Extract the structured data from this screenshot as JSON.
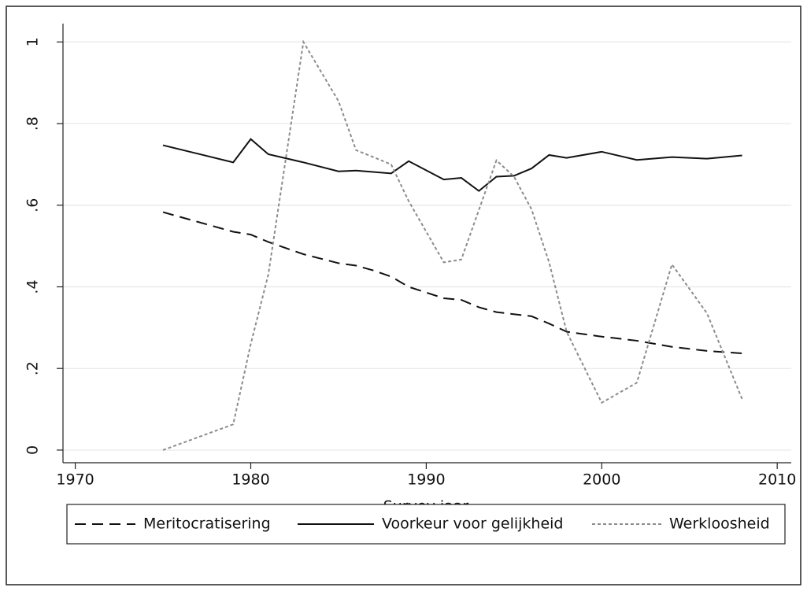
{
  "chart_data": {
    "type": "line",
    "xlabel": "Survey jaar",
    "xlim": [
      1969.3,
      2010.8
    ],
    "xticks": [
      1970,
      1980,
      1990,
      2000,
      2010
    ],
    "ylim": [
      -0.031,
      1.045
    ],
    "yticks": [
      {
        "value": 0,
        "label": "0"
      },
      {
        "value": 0.2,
        "label": ".2"
      },
      {
        "value": 0.4,
        "label": ".4"
      },
      {
        "value": 0.6,
        "label": ".6"
      },
      {
        "value": 0.8,
        "label": ".8"
      },
      {
        "value": 1,
        "label": "1"
      }
    ],
    "grid": true,
    "legend": "bottom",
    "series": [
      {
        "name": "Meritocratisering",
        "color": "#111111",
        "dash": "dash",
        "x": [
          1975,
          1979,
          1980,
          1981,
          1983,
          1985,
          1986,
          1987,
          1988,
          1989,
          1991,
          1992,
          1993,
          1994,
          1996,
          1997,
          1998,
          2000,
          2002,
          2004,
          2006,
          2008
        ],
        "values": [
          0.583,
          0.535,
          0.528,
          0.51,
          0.48,
          0.458,
          0.452,
          0.44,
          0.425,
          0.4,
          0.372,
          0.368,
          0.35,
          0.338,
          0.328,
          0.31,
          0.29,
          0.278,
          0.268,
          0.253,
          0.243,
          0.237
        ]
      },
      {
        "name": "Voorkeur voor gelijkheid",
        "color": "#111111",
        "dash": "solid",
        "x": [
          1975,
          1979,
          1980,
          1981,
          1983,
          1985,
          1986,
          1988,
          1989,
          1991,
          1992,
          1993,
          1994,
          1995,
          1996,
          1997,
          1998,
          2000,
          2002,
          2004,
          2006,
          2008
        ],
        "values": [
          0.747,
          0.705,
          0.762,
          0.725,
          0.705,
          0.683,
          0.685,
          0.678,
          0.708,
          0.663,
          0.667,
          0.635,
          0.67,
          0.672,
          0.69,
          0.723,
          0.716,
          0.731,
          0.711,
          0.718,
          0.714,
          0.722
        ]
      },
      {
        "name": "Werkloosheid",
        "color": "#8c8c8c",
        "dash": "dot",
        "x": [
          1975,
          1979,
          1980,
          1981,
          1983,
          1985,
          1986,
          1988,
          1989,
          1991,
          1992,
          1994,
          1995,
          1996,
          1997,
          1998,
          2000,
          2002,
          2004,
          2006,
          2008
        ],
        "values": [
          0,
          0.063,
          0.26,
          0.43,
          1.0,
          0.855,
          0.735,
          0.7,
          0.61,
          0.46,
          0.467,
          0.71,
          0.67,
          0.59,
          0.46,
          0.29,
          0.116,
          0.165,
          0.455,
          0.335,
          0.125
        ]
      }
    ]
  }
}
